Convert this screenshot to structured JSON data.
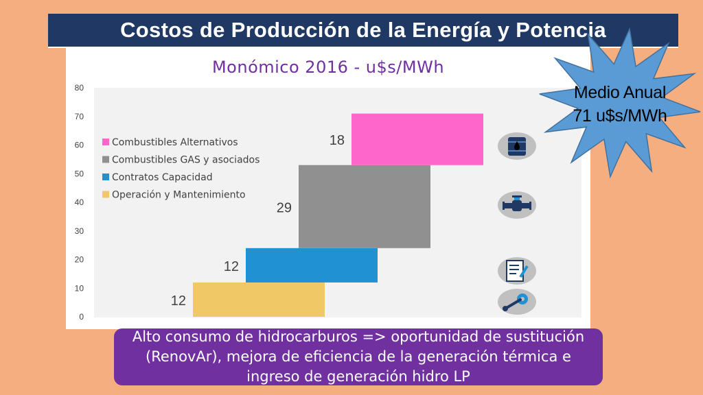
{
  "header": {
    "title": "Costos de Producción de la Energía y Potencia"
  },
  "callout": {
    "line1": "Medio Anual",
    "line2": "71 u$s/MWh"
  },
  "note": {
    "text": "Alto consumo de hidrocarburos => oportunidad de sustitución (RenovAr), mejora de eficiencia de la generación térmica e ingreso de generación hidro LP"
  },
  "colors": {
    "title_bar": "#1f3864",
    "chart_title": "#7030a0",
    "starburst": "#5b9bd5",
    "note_box": "#7030a0",
    "background": "#f4ae80"
  },
  "icons": [
    "oil-barrel-icon",
    "gas-pipe-icon",
    "contract-document-icon",
    "wrench-gear-icon"
  ],
  "chart_data": {
    "type": "bar",
    "subtype": "waterfall",
    "title": "Monómico 2016 - u$s/MWh",
    "ylim": [
      0,
      80
    ],
    "yticks": [
      0,
      10,
      20,
      30,
      40,
      50,
      60,
      70,
      80
    ],
    "grid": false,
    "legend_position": "left",
    "series": [
      {
        "name": "Operación y Mantenimiento",
        "value": 12,
        "label": "12",
        "color": "#f0c866"
      },
      {
        "name": "Contratos Capacidad",
        "value": 12,
        "label": "12",
        "color": "#2092d3"
      },
      {
        "name": "Combustibles GAS y asociados",
        "value": 29,
        "label": "29",
        "color": "#909090"
      },
      {
        "name": "Combustibles Alternativos",
        "value": 18,
        "label": "18",
        "color": "#ff66cc"
      }
    ],
    "legend_order": [
      "Combustibles Alternativos",
      "Combustibles GAS y asociados",
      "Contratos Capacidad",
      "Operación y Mantenimiento"
    ]
  }
}
